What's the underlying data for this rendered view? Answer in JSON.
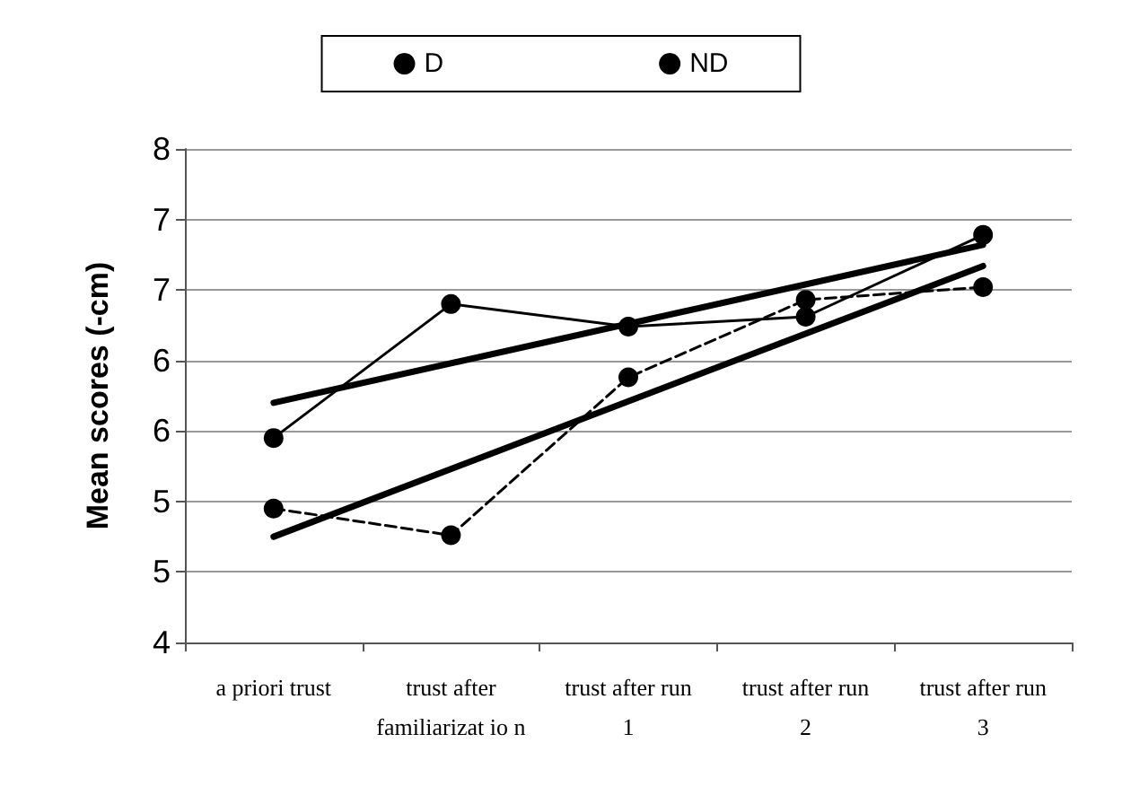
{
  "chart_data": {
    "type": "line",
    "ylabel": "Mean scores (-cm)",
    "categories": [
      "a priori trust",
      "trust after\nfamiliarizat io n",
      "trust after run\n1",
      "trust after run\n2",
      "trust after run\n3"
    ],
    "series": [
      {
        "name": "D",
        "color": "#000000",
        "values": [
          5.45,
          6.4,
          6.24,
          6.31,
          6.89
        ],
        "line_style": "solid"
      },
      {
        "name": "ND",
        "color": "#000000",
        "values": [
          4.95,
          4.76,
          5.88,
          6.43,
          6.52
        ],
        "line_style": "dashed"
      },
      {
        "type": "line",
        "color": "#000000",
        "x": [
          "a priori trust",
          "trust after run\n3"
        ],
        "values": [
          5.7,
          6.82
        ],
        "marker": "none"
      },
      {
        "type": "line",
        "color": "#000000",
        "x": [
          "a priori trust",
          "trust after run\n3"
        ],
        "values": [
          4.75,
          6.67
        ],
        "marker": "none"
      }
    ],
    "ylim": [
      4,
      7.5
    ],
    "yticks": [
      4,
      {
        "value": 4.5,
        "label": "5"
      },
      5,
      {
        "value": 5.5,
        "label": "6"
      },
      6,
      {
        "value": 6.5,
        "label": "7"
      },
      7,
      {
        "value": 7.5,
        "label": "8"
      }
    ],
    "grid": "y",
    "legend": "top",
    "marker": "circle"
  }
}
